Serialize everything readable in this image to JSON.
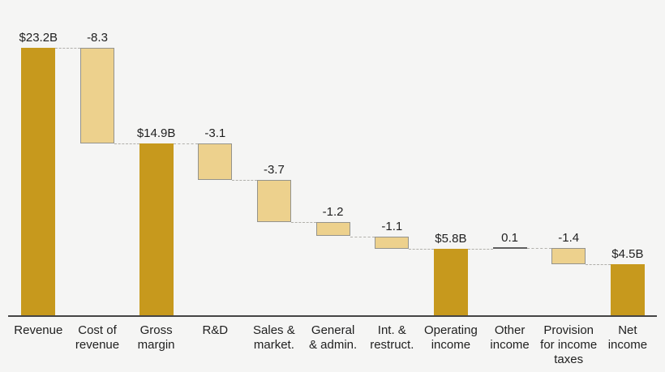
{
  "chart_data": {
    "type": "bar",
    "subtype": "waterfall",
    "title": "",
    "xlabel": "",
    "ylabel": "",
    "grid": false,
    "legend_position": "none",
    "ylim": [
      0,
      24.4
    ],
    "categories": [
      "Revenue",
      "Cost of\nrevenue",
      "Gross\nmargin",
      "R&D",
      "Sales &\nmarket.",
      "General\n& admin.",
      "Int. &\nrestruct.",
      "Operating\nincome",
      "Other\nincome",
      "Provision\nfor income\ntaxes",
      "Net\nincome"
    ],
    "values": [
      23.2,
      -8.3,
      14.9,
      -3.1,
      -3.7,
      -1.2,
      -1.1,
      5.8,
      0.1,
      -1.4,
      4.5
    ],
    "bar_kinds": [
      "total",
      "delta",
      "total",
      "delta",
      "delta",
      "delta",
      "delta",
      "total",
      "delta",
      "delta",
      "total"
    ],
    "value_labels": [
      "$23.2B",
      "-8.3",
      "$14.9B",
      "-3.1",
      "-3.7",
      "-1.2",
      "-1.1",
      "$5.8B",
      "0.1",
      "-1.4",
      "$4.5B"
    ],
    "colors": {
      "total_bar": "#c7991d",
      "delta_bar": "#edd18d",
      "delta_bar_border": "#94938c",
      "tiny_bar_line": "#5f5f5f",
      "connector": "#b1b0ab",
      "axis_line": "#454545",
      "text": "#1f1f1f",
      "background": "#f5f5f4"
    }
  }
}
